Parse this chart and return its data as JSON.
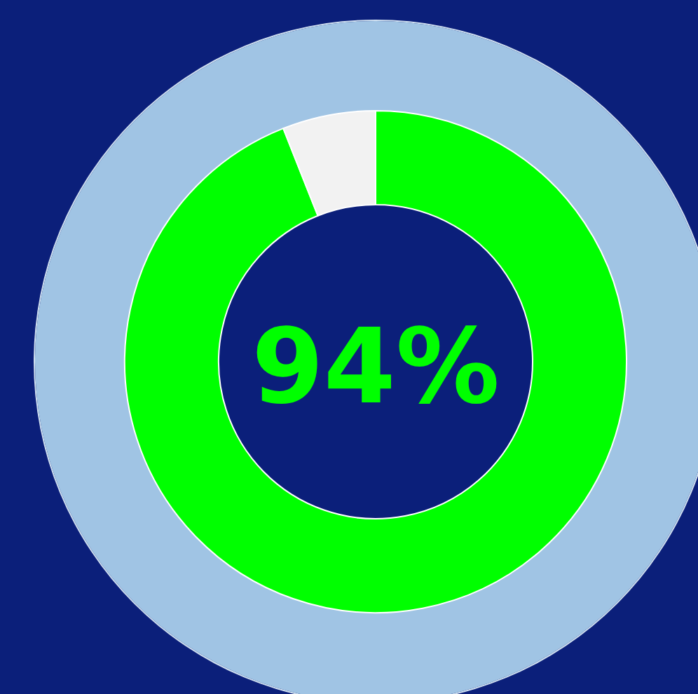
{
  "chart_data": {
    "type": "donut",
    "categories": [
      null,
      null
    ],
    "values": [
      94,
      6
    ],
    "colors": [
      "#00ff00",
      "#f2f2f2"
    ],
    "annotations": [
      "94%"
    ]
  }
}
